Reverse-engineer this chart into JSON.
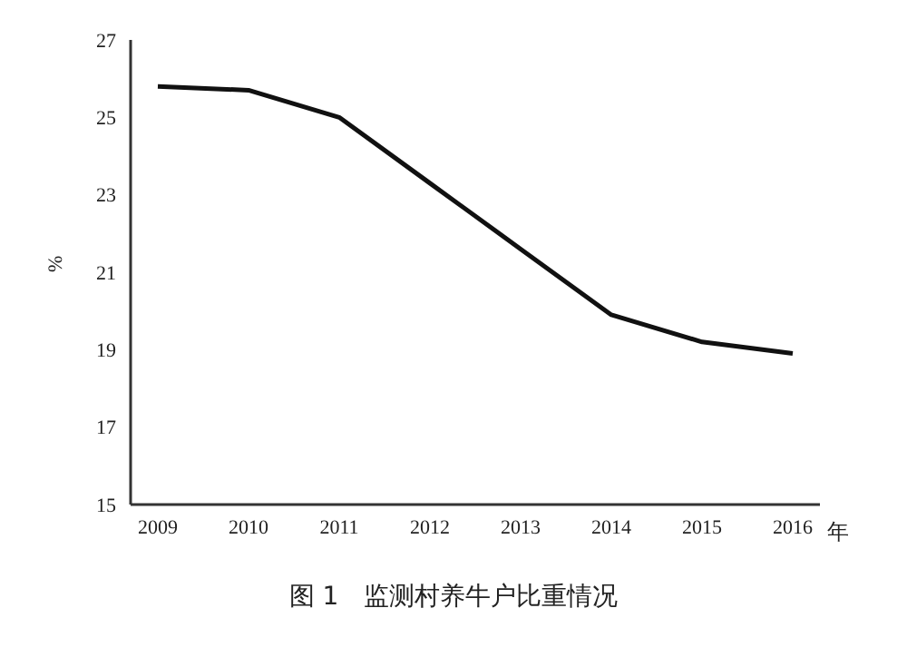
{
  "chart_data": {
    "type": "line",
    "title": "图 1　监测村养牛户比重情况",
    "xlabel": "年",
    "ylabel": "%",
    "categories": [
      "2009",
      "2010",
      "2011",
      "2012",
      "2013",
      "2014",
      "2015",
      "2016"
    ],
    "series": [
      {
        "color": "#111111",
        "values": [
          25.8,
          25.7,
          25.0,
          23.3,
          21.6,
          19.9,
          19.2,
          18.9
        ]
      }
    ],
    "ylim": [
      15,
      27
    ],
    "yticks": [
      15,
      17,
      19,
      21,
      23,
      25,
      27
    ],
    "grid": false,
    "legend": false,
    "marker": "none",
    "line_style": "solid"
  }
}
